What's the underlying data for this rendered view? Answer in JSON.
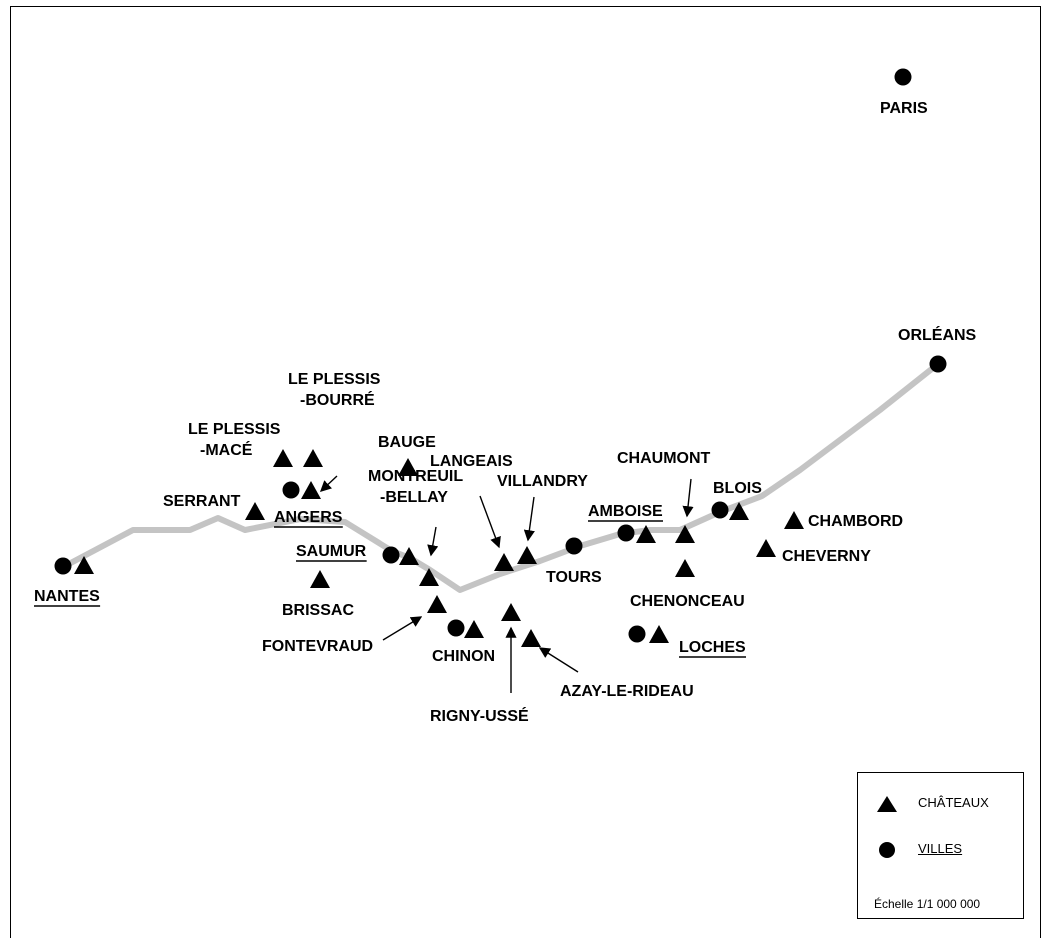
{
  "places": [
    {
      "id": "paris",
      "label": "PARIS",
      "kind": "city",
      "underline": false
    },
    {
      "id": "orleans",
      "label": "ORLÉANS",
      "kind": "city",
      "underline": false
    },
    {
      "id": "nantes",
      "label": "NANTES",
      "kind": "city-chateau",
      "underline": true
    },
    {
      "id": "angers",
      "label": "ANGERS",
      "kind": "city-chateau",
      "underline": true
    },
    {
      "id": "saumur",
      "label": "SAUMUR",
      "kind": "city-chateau",
      "underline": true
    },
    {
      "id": "chinon",
      "label": "CHINON",
      "kind": "city-chateau",
      "underline": false
    },
    {
      "id": "tours",
      "label": "TOURS",
      "kind": "city",
      "underline": false
    },
    {
      "id": "amboise",
      "label": "AMBOISE",
      "kind": "city-chateau",
      "underline": true
    },
    {
      "id": "blois",
      "label": "BLOIS",
      "kind": "city-chateau",
      "underline": false
    },
    {
      "id": "loches",
      "label": "LOCHES",
      "kind": "city-chateau",
      "underline": true
    },
    {
      "id": "plessis-bourre",
      "label": "LE PLESSIS\n-BOURRÉ",
      "kind": "chateau",
      "underline": false
    },
    {
      "id": "plessis-mace",
      "label": "LE PLESSIS\n-MACÉ",
      "kind": "chateau",
      "underline": false
    },
    {
      "id": "serrant",
      "label": "SERRANT",
      "kind": "chateau",
      "underline": false
    },
    {
      "id": "bauge",
      "label": "BAUGE",
      "kind": "chateau",
      "underline": false
    },
    {
      "id": "montreuil",
      "label": "MONTREUIL\n-BELLAY",
      "kind": "chateau",
      "underline": false
    },
    {
      "id": "brissac",
      "label": "BRISSAC",
      "kind": "chateau",
      "underline": false
    },
    {
      "id": "fontevraud",
      "label": "FONTEVRAUD",
      "kind": "chateau",
      "underline": false
    },
    {
      "id": "langeais",
      "label": "LANGEAIS",
      "kind": "chateau",
      "underline": false
    },
    {
      "id": "villandry",
      "label": "VILLANDRY",
      "kind": "chateau",
      "underline": false
    },
    {
      "id": "rigny",
      "label": "RIGNY-USSÉ",
      "kind": "chateau",
      "underline": false
    },
    {
      "id": "azay",
      "label": "AZAY-LE-RIDEAU",
      "kind": "chateau",
      "underline": false
    },
    {
      "id": "chaumont",
      "label": "CHAUMONT",
      "kind": "chateau",
      "underline": false
    },
    {
      "id": "chenonceau",
      "label": "CHENONCEAU",
      "kind": "chateau",
      "underline": false
    },
    {
      "id": "chambord",
      "label": "CHAMBORD",
      "kind": "chateau",
      "underline": false
    },
    {
      "id": "cheverny",
      "label": "CHEVERNY",
      "kind": "chateau",
      "underline": false
    }
  ],
  "legend": {
    "chateaux": "CHÂTEAUX",
    "villes": "VILLES",
    "scale": "Échelle 1/1 000 000"
  },
  "colors": {
    "river": "#c4c4c4",
    "ink": "#000000"
  }
}
